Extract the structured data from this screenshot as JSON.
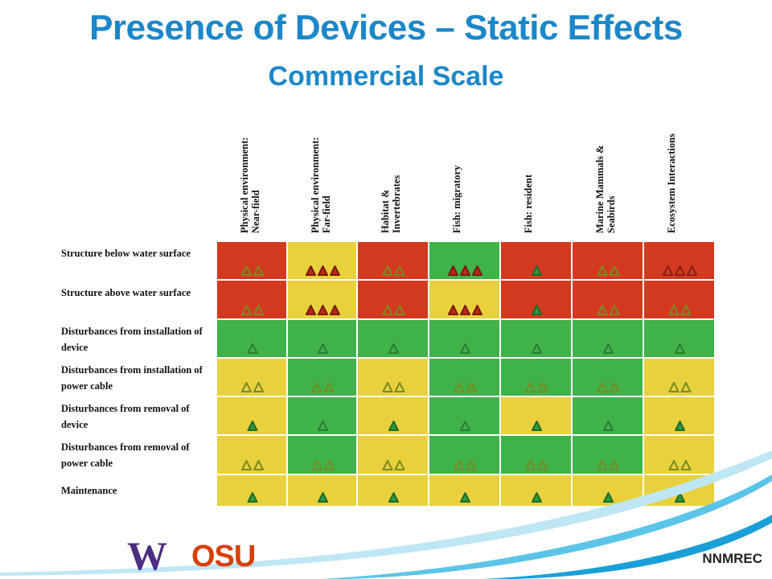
{
  "title": "Presence of Devices – Static Effects",
  "subtitle": "Commercial Scale",
  "columns": [
    "Physical environment:\nNear-field",
    "Physical environment:\nFar-field",
    "Habitat &\nInvertebrates",
    "Fish: migratory",
    "Fish: resident",
    "Marine Mammals &\nSeabirds",
    "Ecosystem Interactions"
  ],
  "rows": [
    {
      "label": "Structure below water surface"
    },
    {
      "label": "Structure above water surface"
    },
    {
      "label": "Disturbances from installation of device"
    },
    {
      "label": "Disturbances from installation of power cable"
    },
    {
      "label": "Disturbances from removal of device"
    },
    {
      "label": "Disturbances from removal of power cable"
    },
    {
      "label": "Maintenance"
    }
  ],
  "matrix": [
    [
      {
        "bg": "red",
        "n": 2,
        "t": "olive-outline"
      },
      {
        "bg": "yellow",
        "n": 3,
        "t": "red-solid"
      },
      {
        "bg": "red",
        "n": 2,
        "t": "olive-outline"
      },
      {
        "bg": "green",
        "n": 3,
        "t": "red-solid"
      },
      {
        "bg": "red",
        "n": 1,
        "t": "green-solid"
      },
      {
        "bg": "red",
        "n": 2,
        "t": "olive-outline"
      },
      {
        "bg": "red",
        "n": 3,
        "t": "red-outline"
      }
    ],
    [
      {
        "bg": "red",
        "n": 2,
        "t": "olive-outline"
      },
      {
        "bg": "yellow",
        "n": 3,
        "t": "red-solid"
      },
      {
        "bg": "red",
        "n": 2,
        "t": "olive-outline"
      },
      {
        "bg": "yellow",
        "n": 3,
        "t": "red-solid"
      },
      {
        "bg": "red",
        "n": 1,
        "t": "green-solid"
      },
      {
        "bg": "red",
        "n": 2,
        "t": "olive-outline"
      },
      {
        "bg": "red",
        "n": 2,
        "t": "olive-outline"
      }
    ],
    [
      {
        "bg": "green",
        "n": 1,
        "t": "green-outline"
      },
      {
        "bg": "green",
        "n": 1,
        "t": "green-outline"
      },
      {
        "bg": "green",
        "n": 1,
        "t": "green-outline"
      },
      {
        "bg": "green",
        "n": 1,
        "t": "green-outline"
      },
      {
        "bg": "green",
        "n": 1,
        "t": "green-outline"
      },
      {
        "bg": "green",
        "n": 1,
        "t": "green-outline"
      },
      {
        "bg": "green",
        "n": 1,
        "t": "green-outline"
      }
    ],
    [
      {
        "bg": "yellow",
        "n": 2,
        "t": "olive-outline"
      },
      {
        "bg": "green",
        "n": 2,
        "t": "olive-outline"
      },
      {
        "bg": "yellow",
        "n": 2,
        "t": "olive-outline"
      },
      {
        "bg": "green",
        "n": 2,
        "t": "olive-outline"
      },
      {
        "bg": "green",
        "n": 2,
        "t": "olive-outline"
      },
      {
        "bg": "green",
        "n": 2,
        "t": "olive-outline"
      },
      {
        "bg": "yellow",
        "n": 2,
        "t": "olive-outline"
      }
    ],
    [
      {
        "bg": "yellow",
        "n": 1,
        "t": "green-solid"
      },
      {
        "bg": "green",
        "n": 1,
        "t": "green-outline"
      },
      {
        "bg": "yellow",
        "n": 1,
        "t": "green-solid"
      },
      {
        "bg": "green",
        "n": 1,
        "t": "green-outline"
      },
      {
        "bg": "yellow",
        "n": 1,
        "t": "green-solid"
      },
      {
        "bg": "green",
        "n": 1,
        "t": "green-outline"
      },
      {
        "bg": "yellow",
        "n": 1,
        "t": "green-solid"
      }
    ],
    [
      {
        "bg": "yellow",
        "n": 2,
        "t": "olive-outline"
      },
      {
        "bg": "green",
        "n": 2,
        "t": "olive-outline"
      },
      {
        "bg": "yellow",
        "n": 2,
        "t": "olive-outline"
      },
      {
        "bg": "green",
        "n": 2,
        "t": "olive-outline"
      },
      {
        "bg": "green",
        "n": 2,
        "t": "olive-outline"
      },
      {
        "bg": "green",
        "n": 2,
        "t": "olive-outline"
      },
      {
        "bg": "yellow",
        "n": 2,
        "t": "olive-outline"
      }
    ],
    [
      {
        "bg": "yellow",
        "n": 1,
        "t": "green-solid"
      },
      {
        "bg": "yellow",
        "n": 1,
        "t": "green-solid"
      },
      {
        "bg": "yellow",
        "n": 1,
        "t": "green-solid"
      },
      {
        "bg": "yellow",
        "n": 1,
        "t": "green-solid"
      },
      {
        "bg": "yellow",
        "n": 1,
        "t": "green-solid"
      },
      {
        "bg": "yellow",
        "n": 1,
        "t": "green-solid"
      },
      {
        "bg": "yellow",
        "n": 1,
        "t": "green-solid"
      }
    ]
  ],
  "colors": {
    "red": "#d3391f",
    "yellow": "#e8d13c",
    "green": "#3fb24a",
    "title": "#1b87c9"
  },
  "footer": {
    "logo_w": "W",
    "logo_osu": "OSU",
    "brand": "NNMREC"
  }
}
